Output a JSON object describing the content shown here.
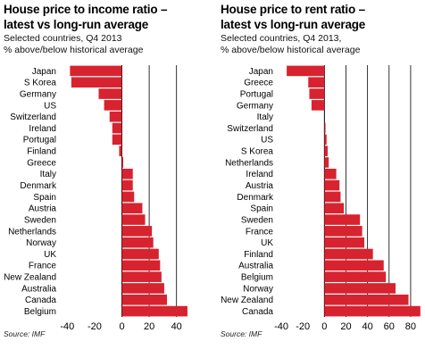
{
  "charts": [
    {
      "title_line1": "House price to income ratio –",
      "title_line2": "latest vs long-run average",
      "subtitle_line1": "Selected countries, Q4 2013",
      "subtitle_line2": "% above/below historical average",
      "source": "Source: IMF"
    },
    {
      "title_line1": "House price to rent ratio –",
      "title_line2": "latest vs long-run average",
      "subtitle_line1": "Selected countries, Q4 2013,",
      "subtitle_line2": "% above/below historical average",
      "source": "Source: IMF"
    }
  ],
  "colors": {
    "bar": "#d7232f",
    "grid": "#000000",
    "text": "#000000"
  },
  "chart_data": [
    {
      "type": "bar",
      "orientation": "horizontal",
      "title": "House price to income ratio – latest vs long-run average",
      "subtitle": "Selected countries, Q4 2013, % above/below historical average",
      "categories": [
        "Japan",
        "S Korea",
        "Germany",
        "US",
        "Switzerland",
        "Ireland",
        "Portugal",
        "Finland",
        "Greece",
        "Italy",
        "Denmark",
        "Spain",
        "Austria",
        "Sweden",
        "Netherlands",
        "Norway",
        "UK",
        "France",
        "New Zealand",
        "Australia",
        "Canada",
        "Belgium"
      ],
      "values": [
        -38,
        -37,
        -17,
        -13,
        -9,
        -7,
        -7,
        -2,
        1,
        8,
        8,
        9,
        15,
        17,
        22,
        23,
        27,
        28,
        29,
        31,
        33,
        48
      ],
      "xlim": [
        -50,
        50
      ],
      "xticks": [
        -40,
        -20,
        0,
        20,
        40
      ],
      "xtick_labels": [
        "-40",
        "-20",
        "0",
        "20",
        "40"
      ],
      "grid": "vertical",
      "source": "Source: IMF"
    },
    {
      "type": "bar",
      "orientation": "horizontal",
      "title": "House price to rent ratio – latest vs long-run average",
      "subtitle": "Selected countries, Q4 2013, % above/below historical average",
      "categories": [
        "Japan",
        "Greece",
        "Portugal",
        "Germany",
        "Italy",
        "Switzerland",
        "US",
        "S Korea",
        "Netherlands",
        "Ireland",
        "Austria",
        "Denmark",
        "Spain",
        "Sweden",
        "France",
        "UK",
        "Finland",
        "Australia",
        "Belgium",
        "Norway",
        "New Zealand",
        "Canada"
      ],
      "values": [
        -35,
        -15,
        -14,
        -12,
        0,
        1,
        2,
        3,
        4,
        11,
        14,
        15,
        18,
        33,
        35,
        37,
        45,
        55,
        57,
        66,
        78,
        89
      ],
      "xlim": [
        -50,
        90
      ],
      "xticks": [
        -40,
        -20,
        0,
        20,
        40,
        60,
        80
      ],
      "xtick_labels": [
        "-40",
        "-20",
        "0",
        "20",
        "40",
        "60",
        "80"
      ],
      "grid": "vertical",
      "source": "Source: IMF"
    }
  ]
}
